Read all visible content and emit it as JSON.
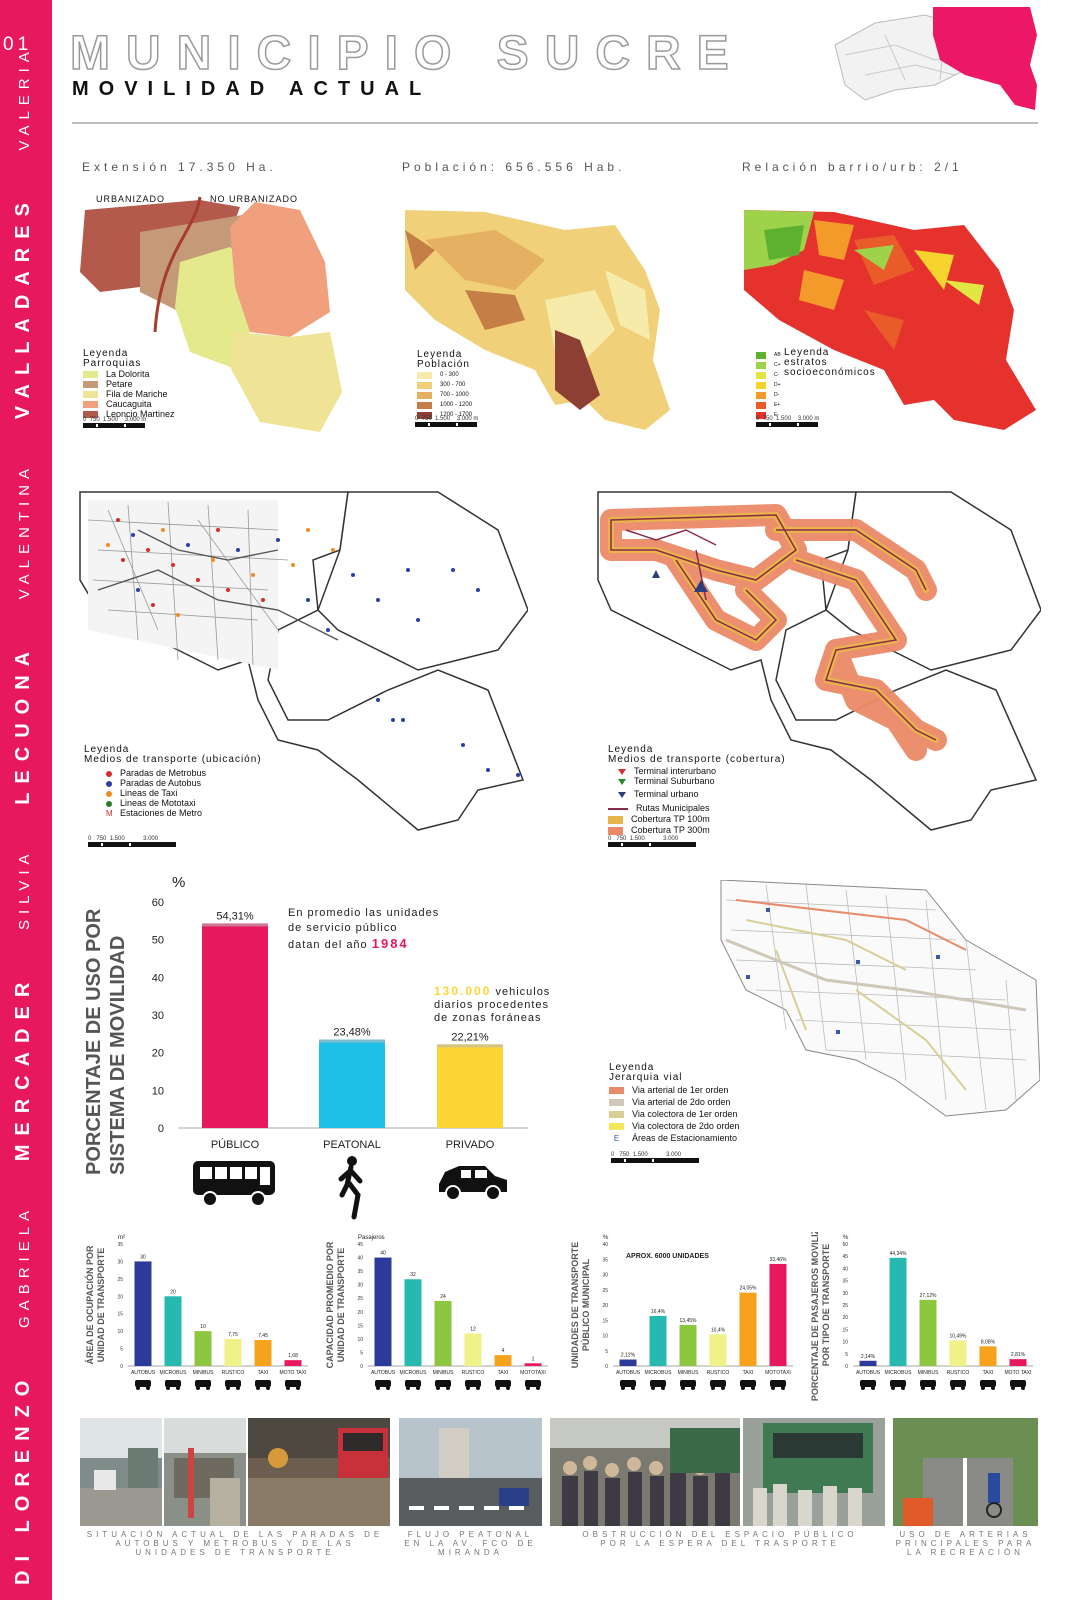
{
  "sidebar": {
    "number": "01",
    "author": [
      "DI LORENZO",
      "GABRIELA",
      "MERCADER",
      "SILVIA",
      "LECUONA",
      "VALENTINA",
      "VALLADARES",
      "VALERIA"
    ],
    "color": "#e8185e"
  },
  "header": {
    "title": "MUNICIPIO SUCRE",
    "subtitle": "MOVILIDAD ACTUAL"
  },
  "stats": {
    "extension": "Extensión 17.350 Ha.",
    "poblacion": "Población: 656.556 Hab.",
    "relacion": "Relación barrio/urb: 2/1"
  },
  "map1": {
    "urbanizado": "URBANIZADO",
    "no_urbanizado": "NO URBANIZADO",
    "legend_title": "Leyenda",
    "legend_sub": "Parroquias",
    "items": [
      {
        "label": "La Dolorita",
        "color": "#e4ea8c"
      },
      {
        "label": "Petare",
        "color": "#c49a79"
      },
      {
        "label": "Fila de Mariche",
        "color": "#efe395"
      },
      {
        "label": "Caucaguita",
        "color": "#f0a07c"
      },
      {
        "label": "Leoncio Martinez",
        "color": "#b35a4c"
      }
    ]
  },
  "map2": {
    "legend_title": "Leyenda",
    "legend_sub": "Población",
    "items": [
      {
        "label": "0 - 300",
        "color": "#f6ebaa"
      },
      {
        "label": "300 - 700",
        "color": "#f0d17a"
      },
      {
        "label": "700 - 1000",
        "color": "#e5b062"
      },
      {
        "label": "1000 - 1200",
        "color": "#c57e46"
      },
      {
        "label": "1200 - 1700",
        "color": "#8e3f34"
      }
    ]
  },
  "map3": {
    "legend_title": "Leyenda",
    "legend_sub1": "estratos",
    "legend_sub2": "socioeconómicos",
    "items": [
      {
        "label": "AB",
        "color": "#5eb130"
      },
      {
        "label": "C+",
        "color": "#9ed24a"
      },
      {
        "label": "C-",
        "color": "#e2e644"
      },
      {
        "label": "D+",
        "color": "#f6d32d"
      },
      {
        "label": "D-",
        "color": "#f39a2a"
      },
      {
        "label": "E+",
        "color": "#ea5b2a"
      },
      {
        "label": "E-",
        "color": "#e5322d"
      }
    ]
  },
  "scale_small": {
    "t0": "0",
    "t1": "750",
    "t2": "1.500",
    "t3": "3.000 m"
  },
  "scale_big": {
    "t0": "0",
    "t1": "750",
    "t2": "1.500",
    "t3": "3.000"
  },
  "map4": {
    "legend_title": "Leyenda",
    "legend_sub": "Medios de transporte (ubicación)",
    "items": [
      {
        "label": "Paradas de Metrobus",
        "color": "#d62c2c"
      },
      {
        "label": "Paradas de Autobus",
        "color": "#2c3fa8"
      },
      {
        "label": "Lineas de Taxi",
        "color": "#f08c24"
      },
      {
        "label": "Lineas de Mototaxi",
        "color": "#2a7a2a"
      },
      {
        "label": "Estaciones de Metro",
        "color": "#d62c2c",
        "mark": "M"
      }
    ]
  },
  "map5": {
    "legend_title": "Leyenda",
    "legend_sub": "Medios de transporte (cobertura)",
    "items": [
      {
        "label": "Terminal interurbano",
        "color": "#d62c2c"
      },
      {
        "label": "Terminal Suburbano",
        "color": "#2a8a2a"
      },
      {
        "label": "Terminal urbano",
        "color": "#2c3f7a"
      },
      {
        "label": "Rutas Municipales",
        "color": "#8a2a4a"
      },
      {
        "label": "Cobertura TP 100m",
        "color": "#e8b54a"
      },
      {
        "label": "Cobertura TP 300m",
        "color": "#ec8a68"
      }
    ]
  },
  "map6": {
    "legend_title": "Leyenda",
    "legend_sub": "Jerarquia vial",
    "items": [
      {
        "label": "Via arterial de 1er orden",
        "color": "#e88b6a"
      },
      {
        "label": "Via arterial de 2do orden",
        "color": "#cfc8b8"
      },
      {
        "label": "Via colectora de 1er orden",
        "color": "#d8cf98"
      },
      {
        "label": "Via colectora de 2do orden",
        "color": "#f2e85a"
      },
      {
        "label": "Áreas de Estacionamiento",
        "color": "#3a5aa8",
        "mark": "E"
      }
    ]
  },
  "main_chart_text": {
    "vertical_line1": "PORCENTAJE DE USO POR",
    "vertical_line2": "SISTEMA DE MOVILIDAD",
    "note1_a": "En promedio las unidades",
    "note1_b": "de servicio público",
    "note1_c": "datan del año",
    "note1_year": "1984",
    "note2_num": "130.000",
    "note2_a": "vehiculos",
    "note2_b": "diarios procedentes",
    "note2_c": "de zonas foráneas"
  },
  "chart_data": [
    {
      "type": "bar",
      "unit": "%",
      "categories": [
        "PÚBLICO",
        "PEATONAL",
        "PRIVADO"
      ],
      "values": [
        54.31,
        23.48,
        22.21
      ],
      "labels": [
        "54,31%",
        "23,48%",
        "22,21%"
      ],
      "colors": [
        "#e8185e",
        "#1ec0e8",
        "#fcd535"
      ],
      "ylim": [
        0,
        60
      ],
      "yticks": [
        0,
        10,
        20,
        30,
        40,
        50,
        60
      ]
    },
    {
      "type": "bar",
      "ylabel": "ÁREA DE OCUPACIÓN POR UNIDAD DE TRANSPORTE",
      "unit": "m²",
      "categories": [
        "AUTOBUS",
        "MICROBUS",
        "MINIBUS",
        "RUSTICO",
        "TAXI",
        "MOTO TAXI"
      ],
      "values": [
        30,
        20,
        10,
        7.75,
        7.45,
        1.68
      ],
      "labels": [
        "30",
        "20",
        "10",
        "7,75",
        "7,45",
        "1,68"
      ],
      "colors": [
        "#2d3a9a",
        "#27b8b0",
        "#8dc63f",
        "#f1f18a",
        "#f7a21c",
        "#e8185e"
      ],
      "ylim": [
        0,
        35
      ],
      "yticks": [
        0,
        5,
        10,
        15,
        20,
        25,
        30,
        35
      ]
    },
    {
      "type": "bar",
      "ylabel": "CAPACIDAD PROMEDIO POR UNIDAD DE TRANSPORTE",
      "unit": "Pasajeros",
      "categories": [
        "AUTOBUS",
        "MICROBUS",
        "MINIBUS",
        "RUSTICO",
        "TAXI",
        "MOTOTAXI"
      ],
      "values": [
        40,
        32,
        24,
        12,
        4,
        1
      ],
      "labels": [
        "40",
        "32",
        "24",
        "12",
        "4",
        "1"
      ],
      "colors": [
        "#2d3a9a",
        "#27b8b0",
        "#8dc63f",
        "#f1f18a",
        "#f7a21c",
        "#e8185e"
      ],
      "ylim": [
        0,
        45
      ],
      "yticks": [
        0,
        5,
        10,
        15,
        20,
        25,
        30,
        35,
        40,
        45
      ]
    },
    {
      "type": "bar",
      "ylabel": "UNIDADES DE TRANSPORTE PÚBLICO MUNICIPAL",
      "unit": "%",
      "annotation": "APROX. 6000 UNIDADES",
      "categories": [
        "AUTOBUS",
        "MICROBUS",
        "MINIBUS",
        "RUSTICO",
        "TAXI",
        "MOTOTAXI"
      ],
      "values": [
        2.12,
        16.4,
        13.45,
        10.4,
        24.05,
        33.46
      ],
      "labels": [
        "2,12%",
        "16,4%",
        "13,45%",
        "10,4%",
        "24,05%",
        "33,46%"
      ],
      "colors": [
        "#2d3a9a",
        "#27b8b0",
        "#8dc63f",
        "#f1f18a",
        "#f7a21c",
        "#e8185e"
      ],
      "ylim": [
        0,
        40
      ],
      "yticks": [
        0,
        5,
        10,
        15,
        20,
        25,
        30,
        35,
        40
      ]
    },
    {
      "type": "bar",
      "ylabel": "PORCENTAJE DE PASAJEROS MOVILIZADO POR TIPO DE TRANSPORTE",
      "unit": "%",
      "categories": [
        "AUTOBUS",
        "MICROBUS",
        "MINIBUS",
        "RUSTICO",
        "TAXI",
        "MOTO TAXI"
      ],
      "values": [
        2.14,
        44.34,
        27.12,
        10.49,
        8.08,
        2.81
      ],
      "labels": [
        "2,14%",
        "44,34%",
        "27,12%",
        "10,49%",
        "8,08%",
        "2,81%"
      ],
      "colors": [
        "#2d3a9a",
        "#27b8b0",
        "#8dc63f",
        "#f1f18a",
        "#f7a21c",
        "#e8185e"
      ],
      "ylim": [
        0,
        50
      ],
      "yticks": [
        0,
        5,
        10,
        15,
        20,
        25,
        30,
        35,
        40,
        45,
        50
      ]
    }
  ],
  "captions": {
    "c1": "Situación actual de las paradas de autobus y metrobus y de las unidades de transporte",
    "c2": "Flujo peatonal en la Av. Fco de Miranda",
    "c3": "Obstrucción del espacio público por la espera del trasporte",
    "c4": "Uso de arterias principales para la recreación"
  }
}
